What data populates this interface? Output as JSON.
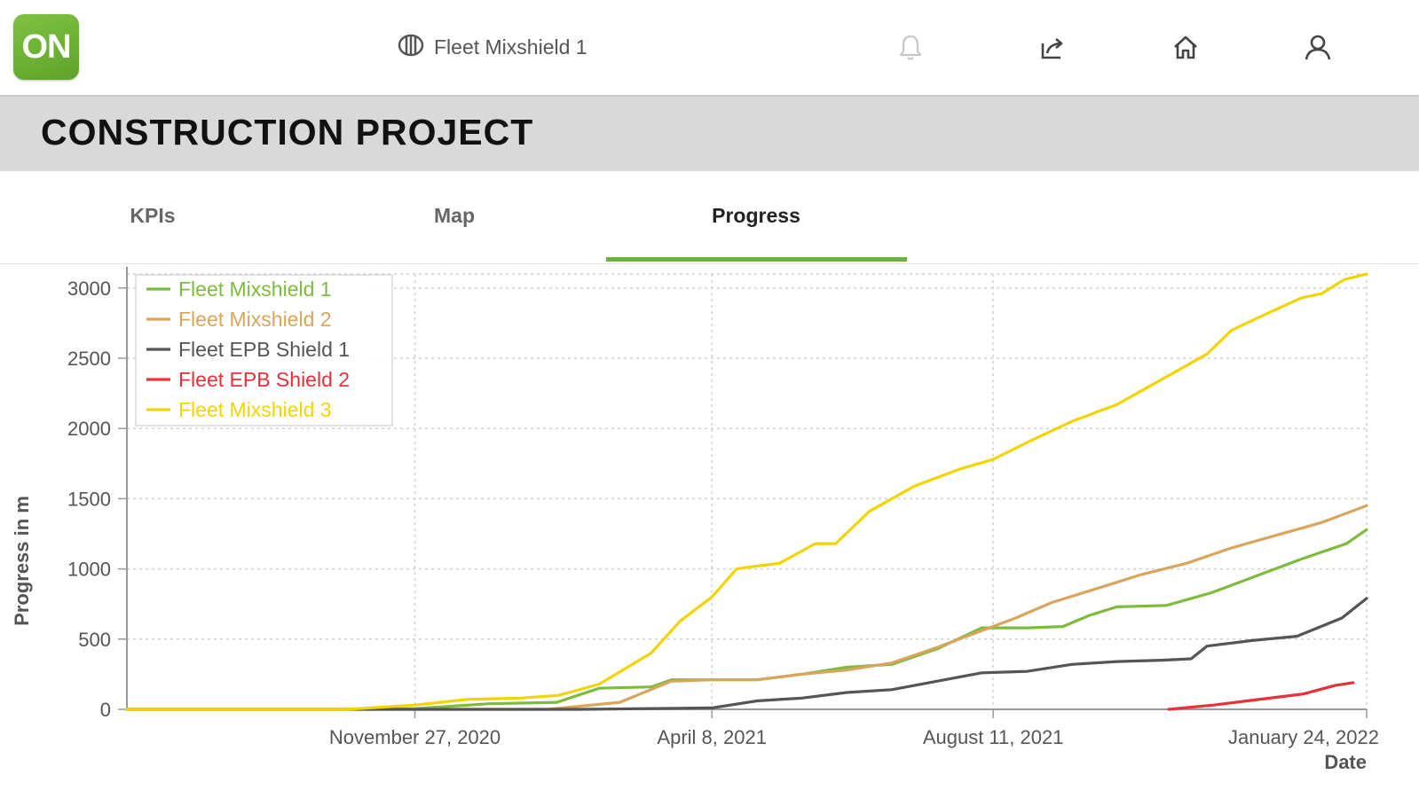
{
  "header": {
    "logo_text": "ON",
    "device": "Fleet Mixshield 1",
    "icons": [
      "fleet-icon",
      "bell-icon",
      "share-icon",
      "home-icon",
      "user-icon"
    ]
  },
  "project": {
    "title": "CONSTRUCTION PROJECT"
  },
  "tabs": [
    {
      "label": "KPIs",
      "active": false
    },
    {
      "label": "Map",
      "active": false
    },
    {
      "label": "Progress",
      "active": true
    }
  ],
  "colors": {
    "accent": "#6db33f",
    "fleet_mixshield_1": "#7dbb3c",
    "fleet_mixshield_2": "#d9a55c",
    "fleet_epb_shield_1": "#555555",
    "fleet_epb_shield_2": "#e8303a",
    "fleet_mixshield_3": "#f2d400"
  },
  "chart_data": {
    "type": "line",
    "xlabel": "Date",
    "ylabel": "Progress in m",
    "ylim": [
      0,
      3100
    ],
    "xlim": [
      "2020-07-22",
      "2022-01-24"
    ],
    "yticks": [
      0,
      500,
      1000,
      1500,
      2000,
      2500,
      3000
    ],
    "xticks": [
      {
        "date": "2020-11-27",
        "label": "November 27, 2020"
      },
      {
        "date": "2021-04-08",
        "label": "April 8, 2021"
      },
      {
        "date": "2021-08-11",
        "label": "August 11, 2021"
      },
      {
        "date": "2022-01-24",
        "label": "January 24, 2022"
      }
    ],
    "grid": true,
    "legend_position": "top-left",
    "series": [
      {
        "name": "Fleet Mixshield 1",
        "color": "#7dbb3c",
        "points": [
          [
            "2020-07-22",
            0
          ],
          [
            "2020-10-28",
            0
          ],
          [
            "2020-11-27",
            5
          ],
          [
            "2020-12-30",
            40
          ],
          [
            "2021-01-29",
            50
          ],
          [
            "2021-02-17",
            150
          ],
          [
            "2021-03-12",
            160
          ],
          [
            "2021-03-21",
            210
          ],
          [
            "2021-04-08",
            210
          ],
          [
            "2021-04-28",
            210
          ],
          [
            "2021-05-18",
            250
          ],
          [
            "2021-06-07",
            300
          ],
          [
            "2021-06-27",
            320
          ],
          [
            "2021-07-17",
            430
          ],
          [
            "2021-08-06",
            580
          ],
          [
            "2021-08-26",
            580
          ],
          [
            "2021-09-11",
            590
          ],
          [
            "2021-09-23",
            670
          ],
          [
            "2021-10-05",
            730
          ],
          [
            "2021-10-27",
            740
          ],
          [
            "2021-11-16",
            830
          ],
          [
            "2021-12-06",
            950
          ],
          [
            "2021-12-26",
            1070
          ],
          [
            "2022-01-15",
            1180
          ],
          [
            "2022-01-24",
            1280
          ]
        ]
      },
      {
        "name": "Fleet Mixshield 2",
        "color": "#d9a55c",
        "points": [
          [
            "2020-07-22",
            0
          ],
          [
            "2021-01-25",
            0
          ],
          [
            "2021-02-26",
            50
          ],
          [
            "2021-03-21",
            200
          ],
          [
            "2021-04-08",
            210
          ],
          [
            "2021-04-28",
            210
          ],
          [
            "2021-05-18",
            250
          ],
          [
            "2021-06-07",
            280
          ],
          [
            "2021-06-27",
            330
          ],
          [
            "2021-07-17",
            440
          ],
          [
            "2021-08-06",
            560
          ],
          [
            "2021-08-21",
            650
          ],
          [
            "2021-09-06",
            760
          ],
          [
            "2021-09-26",
            860
          ],
          [
            "2021-10-16",
            960
          ],
          [
            "2021-11-05",
            1040
          ],
          [
            "2021-11-25",
            1150
          ],
          [
            "2021-12-15",
            1240
          ],
          [
            "2022-01-04",
            1330
          ],
          [
            "2022-01-24",
            1450
          ]
        ]
      },
      {
        "name": "Fleet EPB Shield 1",
        "color": "#555555",
        "points": [
          [
            "2020-07-22",
            0
          ],
          [
            "2021-02-08",
            0
          ],
          [
            "2021-04-08",
            10
          ],
          [
            "2021-04-28",
            60
          ],
          [
            "2021-05-18",
            80
          ],
          [
            "2021-06-07",
            120
          ],
          [
            "2021-06-27",
            140
          ],
          [
            "2021-07-17",
            200
          ],
          [
            "2021-08-06",
            260
          ],
          [
            "2021-08-26",
            270
          ],
          [
            "2021-09-15",
            320
          ],
          [
            "2021-10-05",
            340
          ],
          [
            "2021-10-25",
            350
          ],
          [
            "2021-11-07",
            360
          ],
          [
            "2021-11-14",
            450
          ],
          [
            "2021-12-04",
            490
          ],
          [
            "2021-12-24",
            520
          ],
          [
            "2022-01-13",
            650
          ],
          [
            "2022-01-24",
            790
          ]
        ]
      },
      {
        "name": "Fleet EPB Shield 2",
        "color": "#e8303a",
        "points": [
          [
            "2021-10-28",
            0
          ],
          [
            "2021-11-17",
            30
          ],
          [
            "2021-12-07",
            70
          ],
          [
            "2021-12-27",
            110
          ],
          [
            "2022-01-10",
            170
          ],
          [
            "2022-01-18",
            190
          ]
        ]
      },
      {
        "name": "Fleet Mixshield 3",
        "color": "#f2d400",
        "points": [
          [
            "2020-07-22",
            0
          ],
          [
            "2020-10-28",
            0
          ],
          [
            "2020-11-27",
            30
          ],
          [
            "2020-12-20",
            70
          ],
          [
            "2021-01-13",
            80
          ],
          [
            "2021-01-30",
            100
          ],
          [
            "2021-02-17",
            180
          ],
          [
            "2021-03-12",
            400
          ],
          [
            "2021-03-25",
            630
          ],
          [
            "2021-04-08",
            800
          ],
          [
            "2021-04-19",
            1000
          ],
          [
            "2021-04-28",
            1020
          ],
          [
            "2021-05-08",
            1040
          ],
          [
            "2021-05-24",
            1180
          ],
          [
            "2021-06-02",
            1180
          ],
          [
            "2021-06-17",
            1410
          ],
          [
            "2021-07-07",
            1590
          ],
          [
            "2021-07-27",
            1710
          ],
          [
            "2021-08-11",
            1780
          ],
          [
            "2021-08-26",
            1900
          ],
          [
            "2021-09-15",
            2050
          ],
          [
            "2021-10-05",
            2170
          ],
          [
            "2021-10-25",
            2350
          ],
          [
            "2021-11-14",
            2530
          ],
          [
            "2021-11-25",
            2700
          ],
          [
            "2021-12-11",
            2820
          ],
          [
            "2021-12-26",
            2930
          ],
          [
            "2022-01-04",
            2960
          ],
          [
            "2022-01-14",
            3060
          ],
          [
            "2022-01-24",
            3100
          ]
        ]
      }
    ]
  }
}
